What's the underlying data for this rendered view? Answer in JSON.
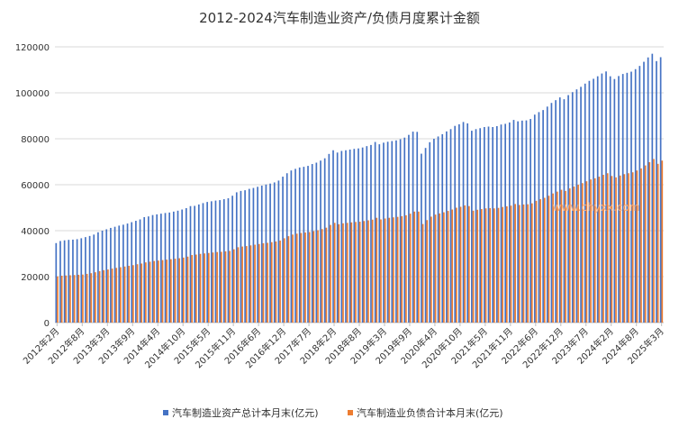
{
  "chart_data": {
    "type": "bar",
    "title": "2012-2024汽车制造业资产/负债月度累计金额",
    "xlabel": "",
    "ylabel": "",
    "ylim": [
      0,
      120000
    ],
    "yticks": [
      "0",
      "20000",
      "40000",
      "60000",
      "80000",
      "100000",
      "120000"
    ],
    "legend_position": "bottom",
    "grid": true,
    "watermark": "www.chyxx.com",
    "colors": {
      "assets": "#4472c4",
      "liabilities": "#ed7d31"
    },
    "x_tick_labels": [
      "2012年2月",
      "2012年8月",
      "2013年3月",
      "2013年9月",
      "2014年4月",
      "2014年10月",
      "2015年5月",
      "2015年11月",
      "2016年6月",
      "2016年12月",
      "2017年7月",
      "2018年2月",
      "2018年8月",
      "2019年3月",
      "2019年9月",
      "2020年4月",
      "2020年10月",
      "2021年5月",
      "2021年11月",
      "2022年6月",
      "2022年12月",
      "2023年7月",
      "2024年2月",
      "2024年8月",
      "2025年3月"
    ],
    "tick_label_indices": [
      0,
      6,
      12,
      18,
      24,
      30,
      36,
      42,
      48,
      54,
      60,
      66,
      72,
      78,
      84,
      90,
      96,
      102,
      108,
      114,
      120,
      126,
      132,
      138,
      144
    ],
    "categories": [
      "2012年2月",
      "2012年3月",
      "2012年4月",
      "2012年5月",
      "2012年6月",
      "2012年7月",
      "2012年8月",
      "2012年9月",
      "2012年10月",
      "2012年11月",
      "2012年12月",
      "2013年2月",
      "2013年3月",
      "2013年4月",
      "2013年5月",
      "2013年6月",
      "2013年7月",
      "2013年8月",
      "2013年9月",
      "2013年10月",
      "2013年11月",
      "2013年12月",
      "2014年2月",
      "2014年3月",
      "2014年4月",
      "2014年5月",
      "2014年6月",
      "2014年7月",
      "2014年8月",
      "2014年9月",
      "2014年10月",
      "2014年11月",
      "2014年12月",
      "2015年2月",
      "2015年3月",
      "2015年4月",
      "2015年5月",
      "2015年6月",
      "2015年7月",
      "2015年8月",
      "2015年9月",
      "2015年10月",
      "2015年11月",
      "2015年12月",
      "2016年2月",
      "2016年3月",
      "2016年4月",
      "2016年5月",
      "2016年6月",
      "2016年7月",
      "2016年8月",
      "2016年9月",
      "2016年10月",
      "2016年11月",
      "2016年12月",
      "2017年2月",
      "2017年3月",
      "2017年4月",
      "2017年5月",
      "2017年6月",
      "2017年7月",
      "2017年8月",
      "2017年9月",
      "2017年10月",
      "2017年11月",
      "2017年12月",
      "2018年2月",
      "2018年3月",
      "2018年4月",
      "2018年5月",
      "2018年6月",
      "2018年7月",
      "2018年8月",
      "2018年9月",
      "2018年10月",
      "2018年11月",
      "2018年12月",
      "2019年2月",
      "2019年3月",
      "2019年4月",
      "2019年5月",
      "2019年6月",
      "2019年7月",
      "2019年8月",
      "2019年9月",
      "2019年10月",
      "2019年11月",
      "2019年12月",
      "2020年2月",
      "2020年3月",
      "2020年4月",
      "2020年5月",
      "2020年6月",
      "2020年7月",
      "2020年8月",
      "2020年9月",
      "2020年10月",
      "2020年11月",
      "2020年12月",
      "2021年2月",
      "2021年3月",
      "2021年4月",
      "2021年5月",
      "2021年6月",
      "2021年7月",
      "2021年8月",
      "2021年9月",
      "2021年10月",
      "2021年11月",
      "2021年12月",
      "2022年2月",
      "2022年3月",
      "2022年4月",
      "2022年5月",
      "2022年6月",
      "2022年7月",
      "2022年8月",
      "2022年9月",
      "2022年10月",
      "2022年11月",
      "2022年12月",
      "2023年2月",
      "2023年3月",
      "2023年4月",
      "2023年5月",
      "2023年6月",
      "2023年7月",
      "2023年8月",
      "2023年9月",
      "2023年10月",
      "2023年11月",
      "2023年12月",
      "2024年2月",
      "2024年3月",
      "2024年4月",
      "2024年5月",
      "2024年6月",
      "2024年7月",
      "2024年8月",
      "2024年9月",
      "2024年10月",
      "2024年11月",
      "2024年12月",
      "2025年2月",
      "2025年3月"
    ],
    "series": [
      {
        "name": "汽车制造业资产总计本月末(亿元)",
        "values": [
          34600,
          35500,
          35800,
          36000,
          36100,
          36300,
          36700,
          37200,
          37700,
          38300,
          39300,
          40000,
          40600,
          41200,
          41700,
          42200,
          42600,
          43100,
          43700,
          44300,
          44900,
          45900,
          46200,
          46800,
          47100,
          47400,
          47700,
          47900,
          48300,
          48700,
          49200,
          49800,
          50700,
          50800,
          51400,
          52000,
          52500,
          52800,
          53100,
          53300,
          53700,
          54100,
          55200,
          56700,
          57300,
          57600,
          58200,
          58600,
          59100,
          59600,
          60100,
          60500,
          61000,
          61800,
          63500,
          65000,
          66200,
          66900,
          67500,
          67800,
          68200,
          69000,
          69600,
          70500,
          71500,
          73400,
          75000,
          74000,
          74700,
          75000,
          75300,
          75600,
          75800,
          76200,
          76800,
          77300,
          78600,
          77600,
          78300,
          78700,
          79000,
          79300,
          79800,
          80500,
          81700,
          83100,
          83000,
          73500,
          76000,
          78500,
          80000,
          81000,
          82000,
          83200,
          84200,
          85600,
          86300,
          87300,
          86700,
          83500,
          84200,
          84600,
          85100,
          85300,
          85100,
          85500,
          86200,
          86500,
          87100,
          88200,
          87600,
          87900,
          88000,
          88600,
          90500,
          91600,
          92500,
          94000,
          95600,
          96800,
          98000,
          97200,
          99000,
          100300,
          101500,
          102600,
          104000,
          105200,
          106100,
          107200,
          108400,
          109300,
          107200,
          106000,
          107300,
          108200,
          108700,
          109200,
          110300,
          111700,
          113500,
          115400,
          117000,
          113800,
          115500
        ]
      },
      {
        "name": "汽车制造业负债合计本月末(亿元)",
        "values": [
          20100,
          20400,
          20500,
          20600,
          20700,
          20800,
          20900,
          21200,
          21500,
          21900,
          22400,
          22800,
          23100,
          23500,
          23800,
          24100,
          24400,
          24700,
          25000,
          25400,
          25700,
          26200,
          26500,
          26800,
          27000,
          27200,
          27400,
          27600,
          27800,
          28000,
          28300,
          28700,
          29400,
          29600,
          29900,
          30100,
          30300,
          30500,
          30700,
          30800,
          31000,
          31200,
          31900,
          32800,
          33100,
          33300,
          33600,
          33900,
          34200,
          34500,
          34700,
          35000,
          35300,
          35700,
          36700,
          37600,
          38300,
          38700,
          39000,
          39200,
          39400,
          39800,
          40200,
          40700,
          41300,
          42500,
          43400,
          42800,
          43200,
          43400,
          43600,
          43800,
          43900,
          44200,
          44500,
          44800,
          45600,
          44900,
          45300,
          45600,
          45800,
          46000,
          46300,
          46700,
          47400,
          48300,
          48300,
          42900,
          44600,
          46100,
          47000,
          47500,
          48000,
          48600,
          49200,
          50000,
          50400,
          51000,
          50700,
          48700,
          49100,
          49400,
          49700,
          49800,
          49700,
          49900,
          50300,
          50600,
          50900,
          51600,
          51200,
          51400,
          51500,
          51900,
          53000,
          53700,
          54300,
          55200,
          56200,
          57000,
          57800,
          57300,
          58400,
          59200,
          60000,
          60700,
          61500,
          62300,
          62800,
          63500,
          64300,
          65000,
          63800,
          63200,
          64000,
          64600,
          65000,
          65400,
          66200,
          67100,
          68400,
          69800,
          71200,
          69100,
          70500
        ]
      }
    ]
  }
}
